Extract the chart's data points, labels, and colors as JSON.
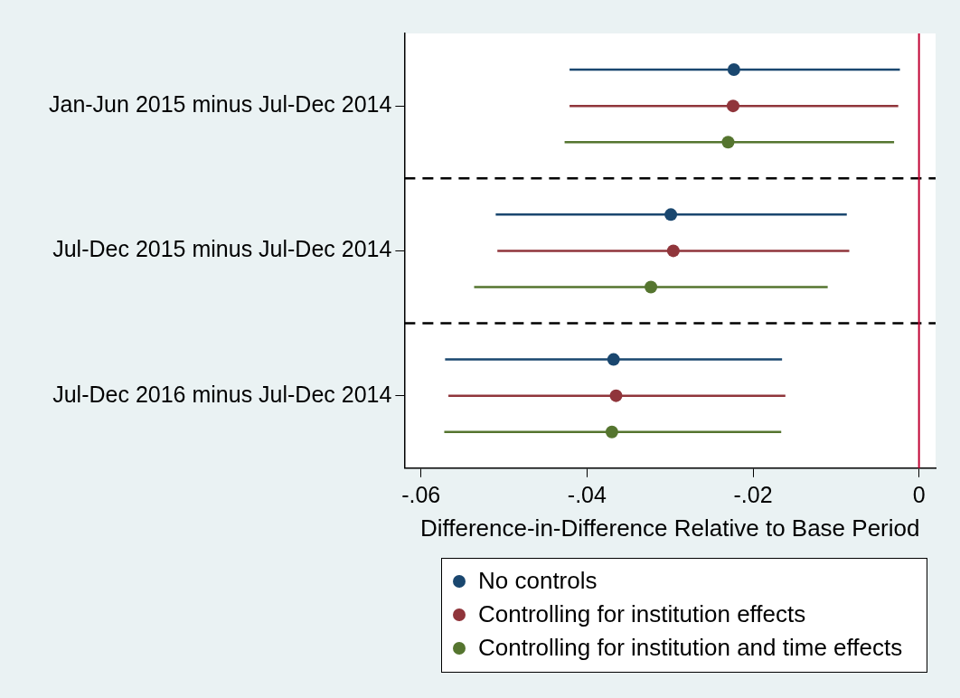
{
  "chart_data": {
    "type": "scatter",
    "orientation": "horizontal",
    "xlabel": "Difference-in-Difference Relative to Base Period",
    "categories": [
      "Jan-Jun 2015 minus Jul-Dec 2014",
      "Jul-Dec 2015 minus Jul-Dec 2014",
      "Jul-Dec 2016 minus Jul-Dec 2014"
    ],
    "series": [
      {
        "name": "No controls",
        "color": "#1a476f",
        "values": [
          -0.0223,
          -0.0299,
          -0.0368
        ],
        "errors": [
          [
            -0.0421,
            -0.0023
          ],
          [
            -0.051,
            -0.0087
          ],
          [
            -0.0571,
            -0.0165
          ]
        ]
      },
      {
        "name": "Controlling for institution effects",
        "color": "#90353b",
        "values": [
          -0.0224,
          -0.0296,
          -0.0365
        ],
        "errors": [
          [
            -0.0421,
            -0.0025
          ],
          [
            -0.0508,
            -0.0084
          ],
          [
            -0.0567,
            -0.0161
          ]
        ]
      },
      {
        "name": "Controlling for institution and time effects",
        "color": "#55752f",
        "values": [
          -0.023,
          -0.0323,
          -0.037
        ],
        "errors": [
          [
            -0.0427,
            -0.003
          ],
          [
            -0.0536,
            -0.011
          ],
          [
            -0.0572,
            -0.0166
          ]
        ]
      }
    ],
    "xlim": [
      -0.062,
      0.002
    ],
    "xticks": [
      {
        "value": -0.06,
        "label": "-.06"
      },
      {
        "value": -0.04,
        "label": "-.04"
      },
      {
        "value": -0.02,
        "label": "-.02"
      },
      0
    ],
    "ref_lines": [
      {
        "axis": "x",
        "value": 0,
        "color": "#c10534",
        "line_style": "solid"
      }
    ],
    "grid": false,
    "legend": "bottom",
    "marker": "circle"
  }
}
